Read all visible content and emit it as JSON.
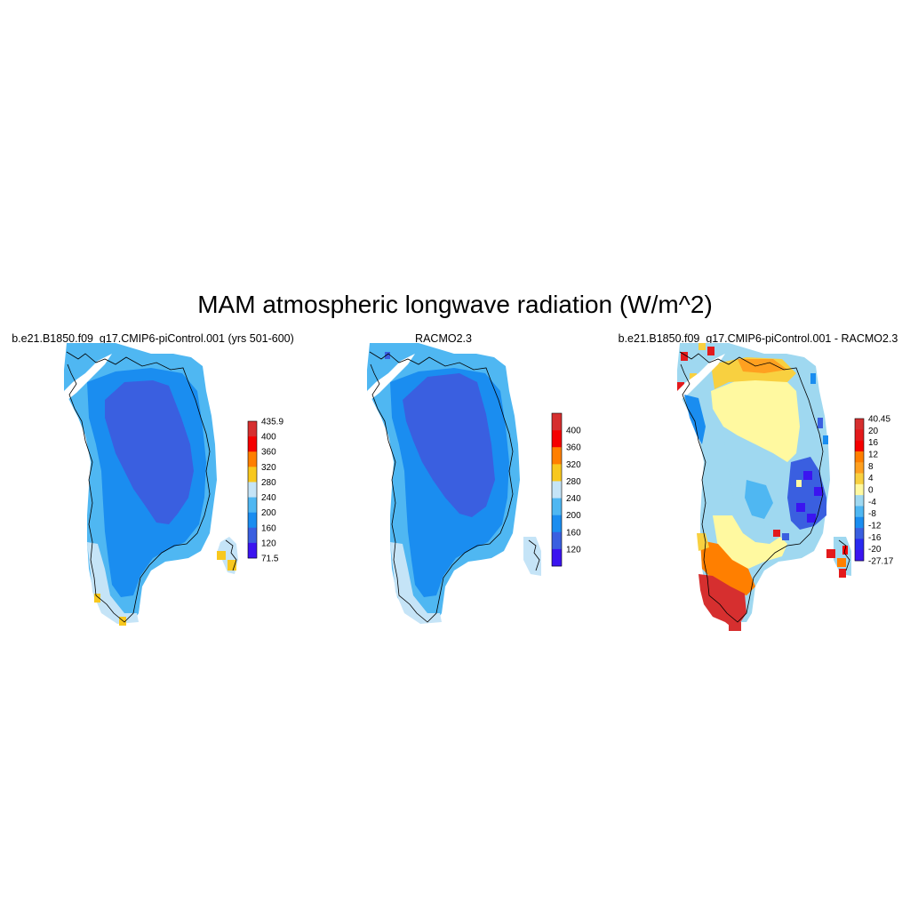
{
  "title": "MAM atmospheric longwave radiation (W/m^2)",
  "panels": [
    {
      "title": "b.e21.B1850.f09_g17.CMIP6-piControl.001 (yrs 501-600)",
      "colorbar": {
        "labels": [
          "435.9",
          "400",
          "360",
          "320",
          "280",
          "240",
          "200",
          "160",
          "120",
          "71.5"
        ],
        "colors": [
          "#d62f2f",
          "#f50000",
          "#ff7f00",
          "#f8c81e",
          "#c5e4f7",
          "#4fb7f2",
          "#1a8df0",
          "#3a5fe0",
          "#3b14f0"
        ]
      }
    },
    {
      "title": "RACMO2.3",
      "colorbar": {
        "labels": [
          "400",
          "360",
          "320",
          "280",
          "240",
          "200",
          "160",
          "120"
        ],
        "colors": [
          "#d62f2f",
          "#f50000",
          "#ff7f00",
          "#f8c81e",
          "#c5e4f7",
          "#4fb7f2",
          "#1a8df0",
          "#3a5fe0",
          "#3b14f0"
        ]
      }
    },
    {
      "title": "b.e21.B1850.f09_g17.CMIP6-piControl.001 - RACMO2.3",
      "colorbar": {
        "labels": [
          "40.45",
          "20",
          "16",
          "12",
          "8",
          "4",
          "0",
          "-4",
          "-8",
          "-12",
          "-16",
          "-20",
          "-27.17"
        ],
        "colors": [
          "#d62f2f",
          "#e31a1c",
          "#f50000",
          "#ff7f00",
          "#ffa020",
          "#f8d040",
          "#fff9a0",
          "#9fd8f0",
          "#4fb7f2",
          "#1a8df0",
          "#3a5fe0",
          "#2a2af0",
          "#3b14f0"
        ]
      }
    }
  ]
}
